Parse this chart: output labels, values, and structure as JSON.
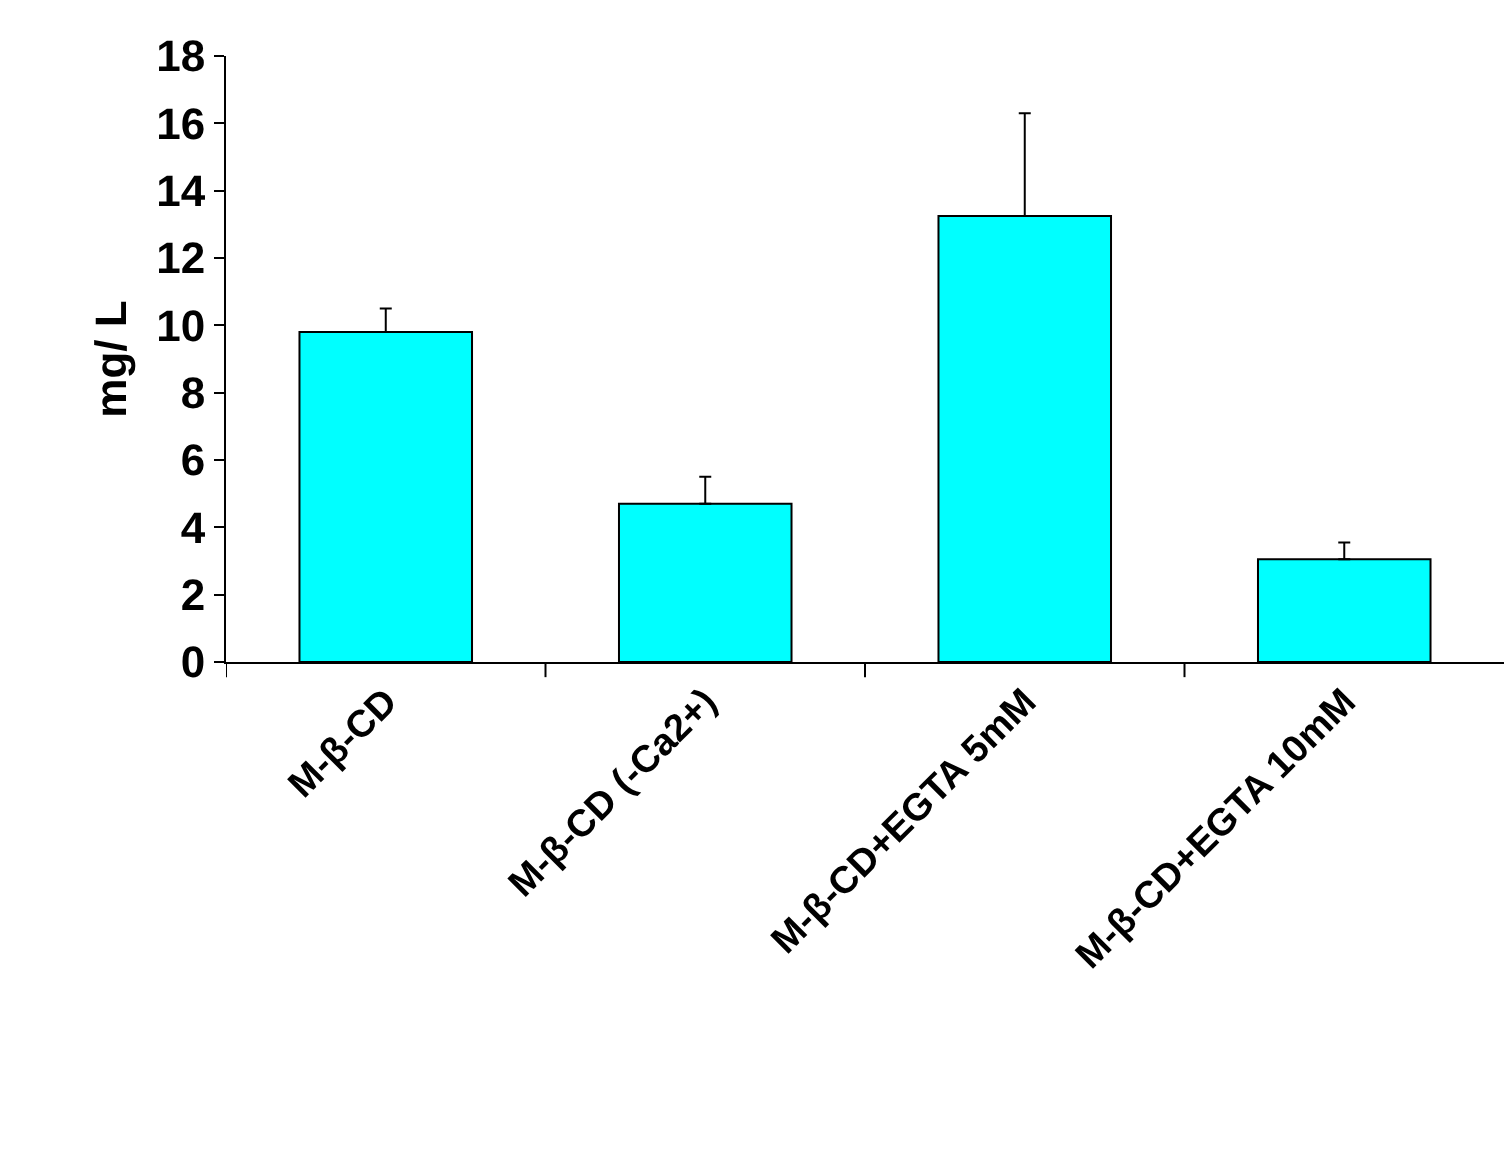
{
  "chart_data": {
    "type": "bar",
    "ylabel": "mg/ L",
    "categories": [
      "M-β-CD",
      "M-β-CD (-Ca2+)",
      "M-β-CD+EGTA 5mM",
      "M-β-CD+EGTA 10mM"
    ],
    "values": [
      9.8,
      4.7,
      13.25,
      3.05
    ],
    "errors": [
      [
        9.8,
        10.5
      ],
      [
        4.7,
        5.5
      ],
      [
        13.25,
        16.3
      ],
      [
        3.05,
        3.55
      ]
    ],
    "color": "#00ffff",
    "ylim": [
      0,
      18
    ],
    "yticks": [
      0,
      2,
      4,
      6,
      8,
      10,
      12,
      14,
      16,
      18
    ],
    "grid": false
  }
}
